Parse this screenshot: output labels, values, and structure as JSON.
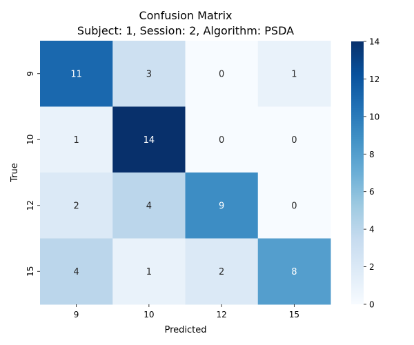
{
  "chart_data": {
    "type": "heatmap",
    "title": "Confusion Matrix",
    "subtitle": "Subject: 1, Session: 2, Algorithm: PSDA",
    "xlabel": "Predicted",
    "ylabel": "True",
    "x_categories": [
      "9",
      "10",
      "12",
      "15"
    ],
    "y_categories": [
      "9",
      "10",
      "12",
      "15"
    ],
    "values": [
      [
        11,
        3,
        0,
        1
      ],
      [
        1,
        14,
        0,
        0
      ],
      [
        2,
        4,
        9,
        0
      ],
      [
        4,
        1,
        2,
        8
      ]
    ],
    "colorbar": {
      "min": 0,
      "max": 14,
      "ticks": [
        "0",
        "2",
        "4",
        "6",
        "8",
        "10",
        "12",
        "14"
      ]
    },
    "colormap": "Blues",
    "grid": false,
    "legend": "colorbar-right"
  }
}
